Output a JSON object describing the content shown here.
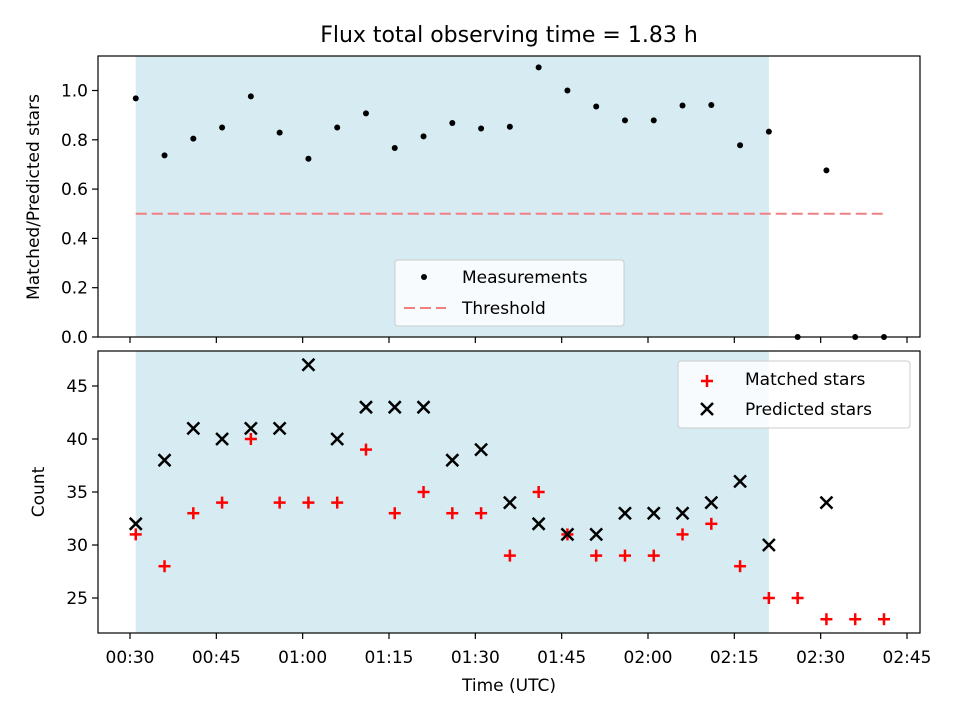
{
  "figure": {
    "title": "Flux total observing time = 1.83 h"
  },
  "chart_data": [
    {
      "type": "scatter",
      "ylabel": "Matched/Predicted stars",
      "ylim": [
        0,
        1.14
      ],
      "yticks": [
        0.0,
        0.2,
        0.4,
        0.6,
        0.8,
        1.0
      ],
      "ytick_labels": [
        "0.0",
        "0.2",
        "0.4",
        "0.6",
        "0.8",
        "1.0"
      ],
      "highlight_span": [
        "00:31",
        "02:21"
      ],
      "highlight_color": "#add8e6",
      "series": [
        {
          "name": "Measurements",
          "marker": "dot",
          "color": "#000000",
          "x": [
            "00:31",
            "00:36",
            "00:41",
            "00:46",
            "00:51",
            "00:56",
            "01:01",
            "01:06",
            "01:11",
            "01:16",
            "01:21",
            "01:26",
            "01:31",
            "01:36",
            "01:41",
            "01:46",
            "01:51",
            "01:56",
            "02:01",
            "02:06",
            "02:11",
            "02:16",
            "02:21",
            "02:26",
            "02:31",
            "02:36",
            "02:41"
          ],
          "y": [
            0.968,
            0.737,
            0.805,
            0.85,
            0.976,
            0.829,
            0.723,
            0.85,
            0.907,
            0.767,
            0.814,
            0.868,
            0.846,
            0.853,
            1.094,
            1.0,
            0.935,
            0.879,
            0.879,
            0.939,
            0.941,
            0.778,
            0.833,
            0.0,
            0.676,
            0.0,
            0.0
          ]
        },
        {
          "name": "Threshold",
          "marker": "dashed-line",
          "color": "#f08080",
          "x": [
            "00:31",
            "02:41"
          ],
          "y": [
            0.5,
            0.5
          ]
        }
      ],
      "legend": {
        "placement": "bottom-center"
      }
    },
    {
      "type": "scatter",
      "xlabel": "Time (UTC)",
      "ylabel": "Count",
      "ylim": [
        21.7,
        48.3
      ],
      "yticks": [
        25,
        30,
        35,
        40,
        45
      ],
      "ytick_labels": [
        "25",
        "30",
        "35",
        "40",
        "45"
      ],
      "xlim": [
        "00:28",
        "02:48"
      ],
      "xticks": [
        "00:30",
        "00:45",
        "01:00",
        "01:15",
        "01:30",
        "01:45",
        "02:00",
        "02:15",
        "02:30",
        "02:45"
      ],
      "highlight_span": [
        "00:31",
        "02:21"
      ],
      "highlight_color": "#add8e6",
      "series": [
        {
          "name": "Matched stars",
          "marker": "plus",
          "color": "#ff0000",
          "x": [
            "00:31",
            "00:36",
            "00:41",
            "00:46",
            "00:51",
            "00:56",
            "01:01",
            "01:06",
            "01:11",
            "01:16",
            "01:21",
            "01:26",
            "01:31",
            "01:36",
            "01:41",
            "01:46",
            "01:51",
            "01:56",
            "02:01",
            "02:06",
            "02:11",
            "02:16",
            "02:21",
            "02:26",
            "02:31",
            "02:36",
            "02:41"
          ],
          "y": [
            31,
            28,
            33,
            34,
            40,
            34,
            34,
            34,
            39,
            33,
            35,
            33,
            33,
            29,
            35,
            31,
            29,
            29,
            29,
            31,
            32,
            28,
            25,
            25,
            23,
            23,
            23
          ]
        },
        {
          "name": "Predicted stars",
          "marker": "x",
          "color": "#000000",
          "x": [
            "00:31",
            "00:36",
            "00:41",
            "00:46",
            "00:51",
            "00:56",
            "01:01",
            "01:06",
            "01:11",
            "01:16",
            "01:21",
            "01:26",
            "01:31",
            "01:36",
            "01:41",
            "01:46",
            "01:51",
            "01:56",
            "02:01",
            "02:06",
            "02:11",
            "02:16",
            "02:21",
            "02:31"
          ],
          "y": [
            32,
            38,
            41,
            40,
            41,
            41,
            47,
            40,
            43,
            43,
            43,
            38,
            39,
            34,
            32,
            31,
            31,
            33,
            33,
            33,
            34,
            36,
            30,
            34
          ]
        }
      ],
      "legend": {
        "placement": "top-right"
      }
    }
  ]
}
